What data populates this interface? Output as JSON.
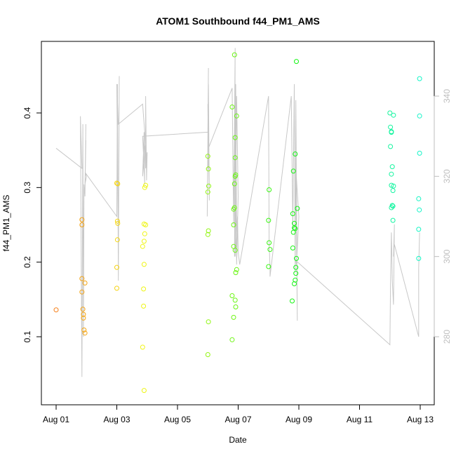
{
  "chart_data": {
    "type": "scatter",
    "title": "ATOM1 Southbound f44_PM1_AMS",
    "xlabel": "Date",
    "ylabel": "f44_PM1_AMS",
    "x_range": [
      "2012-07-31T12:00",
      "2012-08-13T12:00"
    ],
    "x_ticks": [
      "Aug 01",
      "Aug 03",
      "Aug 05",
      "Aug 07",
      "Aug 09",
      "Aug 11",
      "Aug 13"
    ],
    "x_tick_days": [
      1,
      3,
      5,
      7,
      9,
      11,
      13
    ],
    "ylim": [
      0.02,
      0.49
    ],
    "y_ticks": [
      "0.1",
      "0.2",
      "0.3",
      "0.4"
    ],
    "y_tick_values": [
      0.1,
      0.2,
      0.3,
      0.4
    ],
    "y2lim": [
      262,
      350
    ],
    "y2_ticks": [
      "280",
      "300",
      "320",
      "340"
    ],
    "y2_tick_values": [
      280,
      300,
      320,
      340
    ],
    "grid": false,
    "series": [
      {
        "marker": "open-circle",
        "points": [
          [
            1.0,
            0.136
          ],
          [
            1.85,
            0.257
          ],
          [
            1.85,
            0.25
          ],
          [
            1.85,
            0.178
          ],
          [
            1.85,
            0.16
          ],
          [
            1.88,
            0.137
          ],
          [
            1.9,
            0.125
          ],
          [
            1.9,
            0.13
          ],
          [
            1.92,
            0.109
          ],
          [
            1.95,
            0.105
          ],
          [
            1.95,
            0.172
          ],
          [
            3.0,
            0.306
          ],
          [
            3.03,
            0.305
          ],
          [
            3.02,
            0.255
          ],
          [
            3.03,
            0.252
          ],
          [
            3.02,
            0.23
          ],
          [
            3.0,
            0.193
          ],
          [
            3.0,
            0.165
          ],
          [
            3.85,
            0.086
          ],
          [
            3.9,
            0.028
          ],
          [
            3.88,
            0.141
          ],
          [
            3.88,
            0.164
          ],
          [
            3.9,
            0.197
          ],
          [
            3.9,
            0.251
          ],
          [
            3.92,
            0.238
          ],
          [
            3.85,
            0.221
          ],
          [
            3.95,
            0.25
          ],
          [
            3.95,
            0.303
          ],
          [
            3.92,
            0.3
          ],
          [
            3.9,
            0.228
          ],
          [
            6.0,
            0.076
          ],
          [
            6.02,
            0.12
          ],
          [
            6.0,
            0.237
          ],
          [
            6.02,
            0.242
          ],
          [
            6.0,
            0.294
          ],
          [
            6.03,
            0.302
          ],
          [
            6.02,
            0.325
          ],
          [
            6.0,
            0.342
          ],
          [
            6.8,
            0.096
          ],
          [
            6.8,
            0.155
          ],
          [
            6.85,
            0.126
          ],
          [
            6.9,
            0.149
          ],
          [
            6.92,
            0.14
          ],
          [
            6.92,
            0.186
          ],
          [
            6.95,
            0.19
          ],
          [
            6.9,
            0.216
          ],
          [
            6.85,
            0.221
          ],
          [
            6.85,
            0.25
          ],
          [
            6.85,
            0.271
          ],
          [
            6.88,
            0.273
          ],
          [
            6.88,
            0.305
          ],
          [
            6.9,
            0.315
          ],
          [
            6.92,
            0.317
          ],
          [
            6.9,
            0.34
          ],
          [
            6.9,
            0.367
          ],
          [
            6.95,
            0.396
          ],
          [
            6.8,
            0.408
          ],
          [
            6.88,
            0.478
          ],
          [
            8.0,
            0.194
          ],
          [
            8.05,
            0.217
          ],
          [
            8.02,
            0.226
          ],
          [
            8.0,
            0.256
          ],
          [
            8.02,
            0.297
          ],
          [
            8.78,
            0.148
          ],
          [
            8.85,
            0.171
          ],
          [
            8.88,
            0.176
          ],
          [
            8.9,
            0.185
          ],
          [
            8.9,
            0.193
          ],
          [
            8.92,
            0.205
          ],
          [
            8.8,
            0.219
          ],
          [
            8.82,
            0.24
          ],
          [
            8.85,
            0.246
          ],
          [
            8.85,
            0.252
          ],
          [
            8.88,
            0.245
          ],
          [
            8.8,
            0.265
          ],
          [
            8.95,
            0.272
          ],
          [
            8.82,
            0.322
          ],
          [
            8.88,
            0.345
          ],
          [
            8.92,
            0.469
          ],
          [
            12.0,
            0.4
          ],
          [
            12.02,
            0.381
          ],
          [
            12.05,
            0.375
          ],
          [
            12.05,
            0.374
          ],
          [
            12.02,
            0.355
          ],
          [
            12.12,
            0.397
          ],
          [
            12.08,
            0.328
          ],
          [
            12.05,
            0.318
          ],
          [
            12.05,
            0.303
          ],
          [
            12.12,
            0.302
          ],
          [
            12.1,
            0.296
          ],
          [
            12.08,
            0.276
          ],
          [
            12.1,
            0.275
          ],
          [
            12.05,
            0.273
          ],
          [
            12.1,
            0.256
          ],
          [
            12.95,
            0.205
          ],
          [
            12.95,
            0.244
          ],
          [
            12.97,
            0.27
          ],
          [
            12.95,
            0.285
          ],
          [
            12.98,
            0.346
          ],
          [
            12.98,
            0.396
          ],
          [
            12.98,
            0.446
          ]
        ]
      },
      {
        "axis": "right",
        "stroke": "#c8c8c8",
        "points": [
          [
            1.0,
            327
          ],
          [
            1.85,
            322
          ],
          [
            1.8,
            335
          ],
          [
            1.85,
            270
          ],
          [
            1.88,
            333
          ],
          [
            1.9,
            280
          ],
          [
            1.92,
            318
          ],
          [
            1.95,
            315
          ],
          [
            1.98,
            333
          ],
          [
            1.95,
            316
          ],
          [
            1.98,
            329
          ],
          [
            1.95,
            318
          ],
          [
            2.0,
            320
          ],
          [
            1.95,
            321
          ],
          [
            3.0,
            310
          ],
          [
            3.02,
            343
          ],
          [
            3.05,
            294
          ],
          [
            3.08,
            345
          ],
          [
            3.05,
            300
          ],
          [
            3.0,
            343
          ],
          [
            3.05,
            333
          ],
          [
            3.85,
            338
          ],
          [
            3.95,
            328
          ],
          [
            3.85,
            320
          ],
          [
            3.9,
            331
          ],
          [
            3.95,
            322
          ],
          [
            3.95,
            340
          ],
          [
            3.98,
            319
          ],
          [
            4.0,
            326
          ],
          [
            3.95,
            322
          ],
          [
            3.9,
            330
          ],
          [
            3.92,
            318
          ],
          [
            3.9,
            322
          ],
          [
            3.85,
            330
          ],
          [
            6.0,
            331
          ],
          [
            6.02,
            347
          ],
          [
            5.98,
            310
          ],
          [
            6.02,
            343
          ],
          [
            6.05,
            314
          ],
          [
            6.0,
            338
          ],
          [
            6.02,
            322
          ],
          [
            6.0,
            330
          ],
          [
            6.02,
            327
          ],
          [
            6.8,
            342
          ],
          [
            6.85,
            308
          ],
          [
            6.9,
            352
          ],
          [
            6.88,
            300
          ],
          [
            6.92,
            343
          ],
          [
            6.95,
            304
          ],
          [
            6.9,
            333
          ],
          [
            6.95,
            298
          ],
          [
            7.0,
            315
          ],
          [
            6.95,
            340
          ],
          [
            6.9,
            300
          ],
          [
            6.98,
            310
          ],
          [
            7.0,
            301
          ],
          [
            7.05,
            298
          ],
          [
            8.0,
            340
          ],
          [
            8.02,
            304
          ],
          [
            8.05,
            297
          ],
          [
            8.05,
            295
          ],
          [
            8.75,
            340
          ],
          [
            8.8,
            307
          ],
          [
            8.85,
            343
          ],
          [
            8.88,
            296
          ],
          [
            8.9,
            339
          ],
          [
            8.95,
            284
          ],
          [
            8.9,
            322
          ],
          [
            8.95,
            316
          ],
          [
            9.0,
            310
          ],
          [
            8.95,
            302
          ],
          [
            8.92,
            298
          ],
          [
            8.9,
            299
          ],
          [
            12.0,
            278
          ],
          [
            12.02,
            292
          ],
          [
            12.05,
            306
          ],
          [
            12.08,
            294
          ],
          [
            12.12,
            288
          ],
          [
            12.15,
            308
          ],
          [
            12.12,
            300
          ],
          [
            12.15,
            303
          ],
          [
            12.95,
            280
          ],
          [
            12.95,
            297
          ],
          [
            12.98,
            306
          ]
        ]
      }
    ]
  }
}
